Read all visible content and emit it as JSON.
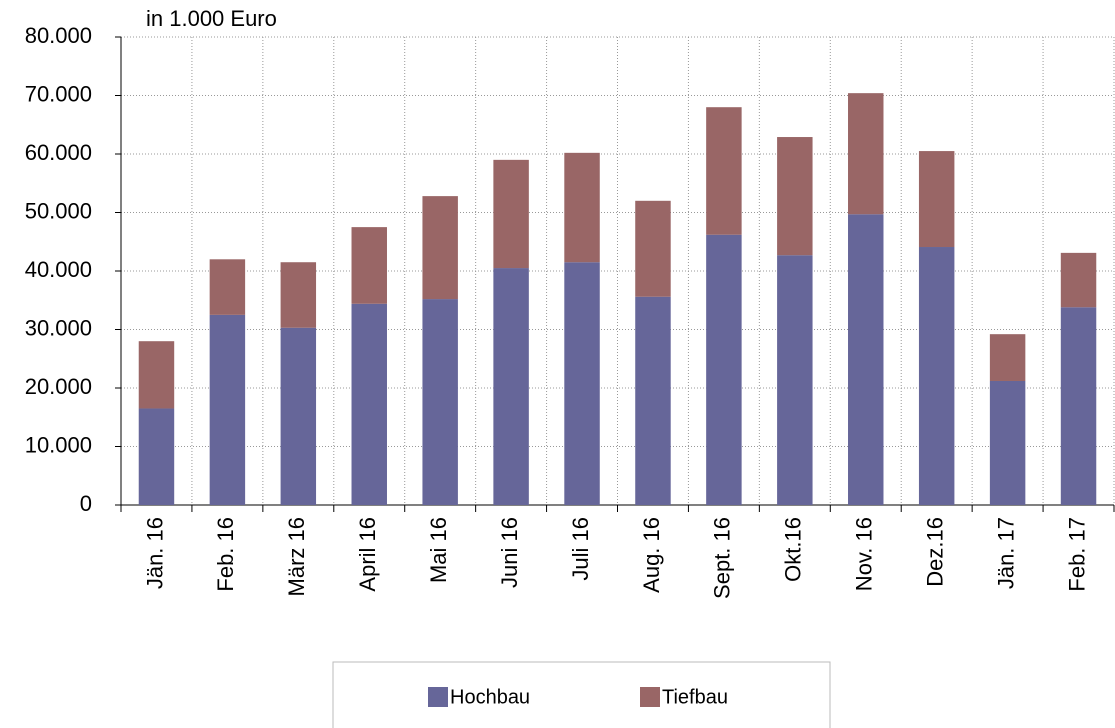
{
  "chart_data": {
    "type": "stacked-bar",
    "y_axis_label": "in 1.000 Euro",
    "categories": [
      "Jän. 16",
      "Feb. 16",
      "März 16",
      "April 16",
      "Mai  16",
      "Juni  16",
      "Juli  16",
      "Aug. 16",
      "Sept. 16",
      "Okt.16",
      "Nov. 16",
      "Dez.16",
      "Jän. 17",
      "Feb. 17"
    ],
    "series": [
      {
        "name": "Hochbau",
        "color": "#666699",
        "values": [
          16500,
          32500,
          30300,
          34400,
          35200,
          40500,
          41500,
          35600,
          46200,
          42700,
          49700,
          44100,
          21200,
          33800
        ]
      },
      {
        "name": "Tiefbau",
        "color": "#996666",
        "values": [
          11500,
          9500,
          11200,
          13100,
          17600,
          18500,
          18700,
          16400,
          21800,
          20200,
          20700,
          16400,
          8000,
          9300
        ]
      }
    ],
    "ylim": [
      0,
      80000
    ],
    "yticks": [
      0,
      {
        "value": 10000,
        "label": "10.000"
      },
      {
        "value": 20000,
        "label": "20.000"
      },
      {
        "value": 30000,
        "label": "30.000"
      },
      {
        "value": 40000,
        "label": "40.000"
      },
      {
        "value": 50000,
        "label": "50.000"
      },
      {
        "value": 60000,
        "label": "60.000"
      },
      {
        "value": 70000,
        "label": "70.000"
      },
      {
        "value": 80000,
        "label": "80.000"
      }
    ],
    "grid": true,
    "legend": "bottom"
  }
}
